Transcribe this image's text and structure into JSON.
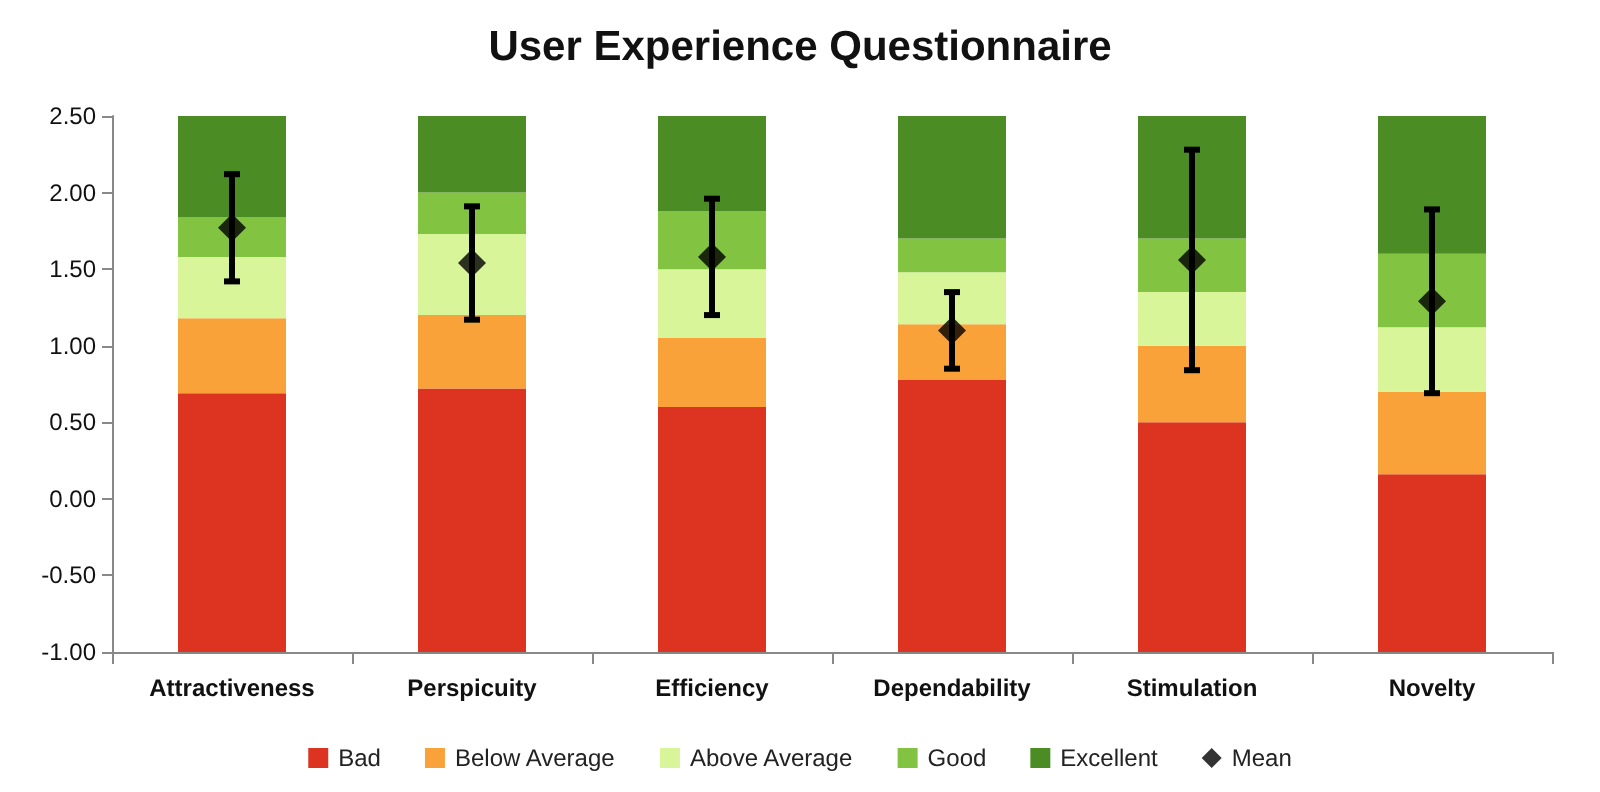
{
  "chart_data": {
    "type": "bar",
    "title": "User Experience Questionnaire",
    "categories": [
      "Attractiveness",
      "Perspicuity",
      "Efficiency",
      "Dependability",
      "Stimulation",
      "Novelty"
    ],
    "series": [
      {
        "name": "Bad",
        "color": "#dc3421",
        "base": [
          -1,
          -1,
          -1,
          -1,
          -1,
          -1
        ],
        "values": [
          1.69,
          1.72,
          1.6,
          1.78,
          1.5,
          1.16
        ]
      },
      {
        "name": "Below Average",
        "color": "#f9a23a",
        "base": [
          0.69,
          0.72,
          0.6,
          0.78,
          0.5,
          0.16
        ],
        "values": [
          0.49,
          0.48,
          0.45,
          0.36,
          0.5,
          0.54
        ]
      },
      {
        "name": "Above Average",
        "color": "#d9f59a",
        "base": [
          1.18,
          1.2,
          1.05,
          1.14,
          1.0,
          0.7
        ],
        "values": [
          0.4,
          0.53,
          0.45,
          0.34,
          0.35,
          0.42
        ]
      },
      {
        "name": "Good",
        "color": "#82c341",
        "base": [
          1.58,
          1.73,
          1.5,
          1.48,
          1.35,
          1.12
        ],
        "values": [
          0.26,
          0.27,
          0.38,
          0.22,
          0.35,
          0.48
        ]
      },
      {
        "name": "Excellent",
        "color": "#4b8d24",
        "base": [
          1.84,
          2.0,
          1.88,
          1.7,
          1.7,
          1.6
        ],
        "values": [
          0.66,
          0.5,
          0.62,
          0.8,
          0.8,
          0.9
        ]
      },
      {
        "name": "Mean",
        "type": "scatter",
        "color": "#000000",
        "x": [
          "Attractiveness",
          "Perspicuity",
          "Efficiency",
          "Dependability",
          "Stimulation",
          "Novelty"
        ],
        "values": [
          1.77,
          1.54,
          1.58,
          1.1,
          1.56,
          1.29
        ],
        "errors": [
          [
            1.42,
            2.12
          ],
          [
            1.17,
            1.91
          ],
          [
            1.2,
            1.96
          ],
          [
            0.85,
            1.35
          ],
          [
            0.84,
            2.28
          ],
          [
            0.69,
            1.89
          ]
        ]
      }
    ],
    "ylim": [
      -1,
      2.5
    ],
    "yticks": [
      {
        "value": -1,
        "label": "-1.00"
      },
      {
        "value": -0.5,
        "label": "-0.50"
      },
      {
        "value": 0,
        "label": "0.00"
      },
      {
        "value": 0.5,
        "label": "0.50"
      },
      {
        "value": 1,
        "label": "1.00"
      },
      {
        "value": 1.5,
        "label": "1.50"
      },
      {
        "value": 2,
        "label": "2.00"
      },
      {
        "value": 2.5,
        "label": "2.50"
      }
    ],
    "legend": "bottom",
    "marker": "diamond"
  }
}
